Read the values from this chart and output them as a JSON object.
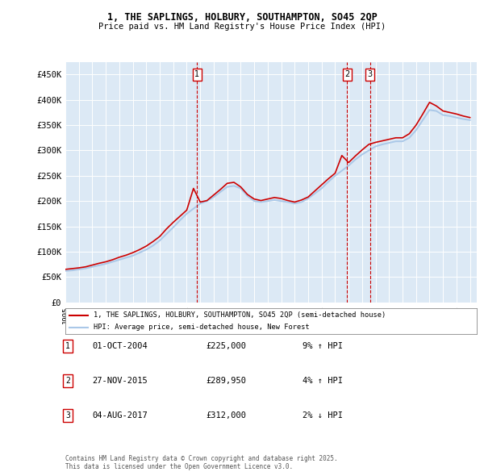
{
  "title": "1, THE SAPLINGS, HOLBURY, SOUTHAMPTON, SO45 2QP",
  "subtitle": "Price paid vs. HM Land Registry's House Price Index (HPI)",
  "ylim": [
    0,
    475000
  ],
  "yticks": [
    0,
    50000,
    100000,
    150000,
    200000,
    250000,
    300000,
    350000,
    400000,
    450000
  ],
  "ytick_labels": [
    "£0",
    "£50K",
    "£100K",
    "£150K",
    "£200K",
    "£250K",
    "£300K",
    "£350K",
    "£400K",
    "£450K"
  ],
  "xlim_start": 1995,
  "xlim_end": 2025.5,
  "plot_bg_color": "#dce9f5",
  "fig_bg_color": "#ffffff",
  "line1_color": "#cc0000",
  "line2_color": "#aac8e8",
  "vline_color": "#cc0000",
  "sale_markers": [
    {
      "x": 2004.75,
      "label": "1"
    },
    {
      "x": 2015.9,
      "label": "2"
    },
    {
      "x": 2017.58,
      "label": "3"
    }
  ],
  "legend_line1": "1, THE SAPLINGS, HOLBURY, SOUTHAMPTON, SO45 2QP (semi-detached house)",
  "legend_line2": "HPI: Average price, semi-detached house, New Forest",
  "table_rows": [
    {
      "num": "1",
      "date": "01-OCT-2004",
      "price": "£225,000",
      "change": "9% ↑ HPI"
    },
    {
      "num": "2",
      "date": "27-NOV-2015",
      "price": "£289,950",
      "change": "4% ↑ HPI"
    },
    {
      "num": "3",
      "date": "04-AUG-2017",
      "price": "£312,000",
      "change": "2% ↓ HPI"
    }
  ],
  "footer": "Contains HM Land Registry data © Crown copyright and database right 2025.\nThis data is licensed under the Open Government Licence v3.0.",
  "hpi_years": [
    1995,
    1995.5,
    1996,
    1996.5,
    1997,
    1997.5,
    1998,
    1998.5,
    1999,
    1999.5,
    2000,
    2000.5,
    2001,
    2001.5,
    2002,
    2002.5,
    2003,
    2003.5,
    2004,
    2004.5,
    2005,
    2005.5,
    2006,
    2006.5,
    2007,
    2007.5,
    2008,
    2008.5,
    2009,
    2009.5,
    2010,
    2010.5,
    2011,
    2011.5,
    2012,
    2012.5,
    2013,
    2013.5,
    2014,
    2014.5,
    2015,
    2015.5,
    2016,
    2016.5,
    2017,
    2017.5,
    2018,
    2018.5,
    2019,
    2019.5,
    2020,
    2020.5,
    2021,
    2021.5,
    2022,
    2022.5,
    2023,
    2023.5,
    2024,
    2024.5,
    2025
  ],
  "hpi_values": [
    62000,
    63000,
    65000,
    67000,
    70000,
    73000,
    76000,
    80000,
    84000,
    88000,
    92000,
    98000,
    104000,
    112000,
    122000,
    135000,
    148000,
    162000,
    175000,
    185000,
    195000,
    200000,
    208000,
    218000,
    228000,
    230000,
    225000,
    210000,
    200000,
    198000,
    200000,
    202000,
    200000,
    198000,
    195000,
    198000,
    205000,
    215000,
    225000,
    238000,
    250000,
    260000,
    270000,
    282000,
    292000,
    300000,
    308000,
    312000,
    315000,
    318000,
    318000,
    325000,
    340000,
    360000,
    380000,
    378000,
    370000,
    368000,
    365000,
    362000,
    360000
  ],
  "price_years": [
    1995,
    1995.5,
    1996,
    1996.5,
    1997,
    1997.5,
    1998,
    1998.5,
    1999,
    1999.5,
    2000,
    2000.5,
    2001,
    2001.5,
    2002,
    2002.5,
    2003,
    2003.5,
    2004,
    2004.5,
    2005,
    2005.5,
    2006,
    2006.5,
    2007,
    2007.5,
    2008,
    2008.5,
    2009,
    2009.5,
    2010,
    2010.5,
    2011,
    2011.5,
    2012,
    2012.5,
    2013,
    2013.5,
    2014,
    2014.5,
    2015,
    2015.5,
    2016,
    2016.5,
    2017,
    2017.5,
    2018,
    2018.5,
    2019,
    2019.5,
    2020,
    2020.5,
    2021,
    2021.5,
    2022,
    2022.5,
    2023,
    2023.5,
    2024,
    2024.5,
    2025
  ],
  "price_values": [
    65000,
    66500,
    68000,
    70000,
    73500,
    77000,
    80000,
    84000,
    89000,
    93000,
    98000,
    104000,
    111000,
    120000,
    130000,
    145000,
    158000,
    170000,
    182000,
    225000,
    198000,
    201000,
    212000,
    223000,
    235000,
    237000,
    228000,
    213000,
    204000,
    201000,
    204000,
    207000,
    205000,
    201000,
    198000,
    202000,
    208000,
    220000,
    232000,
    244000,
    255000,
    289950,
    276000,
    289000,
    301000,
    312000,
    316000,
    319000,
    322000,
    325000,
    325000,
    333000,
    350000,
    372000,
    395000,
    388000,
    378000,
    375000,
    372000,
    368000,
    365000
  ]
}
